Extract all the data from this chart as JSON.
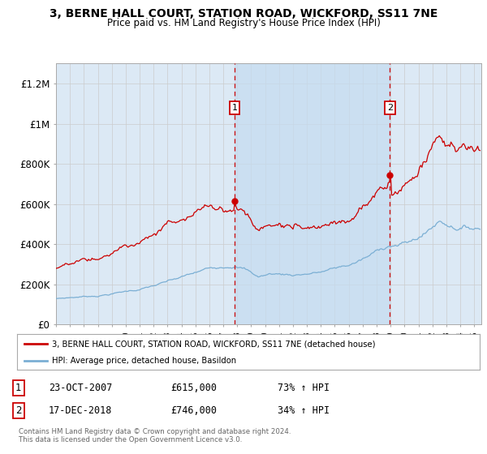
{
  "title": "3, BERNE HALL COURT, STATION ROAD, WICKFORD, SS11 7NE",
  "subtitle": "Price paid vs. HM Land Registry's House Price Index (HPI)",
  "ylim": [
    0,
    1300000
  ],
  "yticks": [
    0,
    200000,
    400000,
    600000,
    800000,
    1000000,
    1200000
  ],
  "ytick_labels": [
    "£0",
    "£200K",
    "£400K",
    "£600K",
    "£800K",
    "£1M",
    "£1.2M"
  ],
  "xmin": 1995.0,
  "xmax": 2025.5,
  "sale1_x": 2007.81,
  "sale1_y": 615000,
  "sale2_x": 2018.96,
  "sale2_y": 746000,
  "bg_color": "#dce9f5",
  "shade_color": "#c5dcf0",
  "red_line_color": "#cc0000",
  "blue_line_color": "#7bafd4",
  "grid_color": "#cccccc",
  "legend_line1": "3, BERNE HALL COURT, STATION ROAD, WICKFORD, SS11 7NE (detached house)",
  "legend_line2": "HPI: Average price, detached house, Basildon",
  "sale1_date": "23-OCT-2007",
  "sale1_price": "£615,000",
  "sale1_hpi": "73% ↑ HPI",
  "sale2_date": "17-DEC-2018",
  "sale2_price": "£746,000",
  "sale2_hpi": "34% ↑ HPI",
  "footer": "Contains HM Land Registry data © Crown copyright and database right 2024.\nThis data is licensed under the Open Government Licence v3.0."
}
